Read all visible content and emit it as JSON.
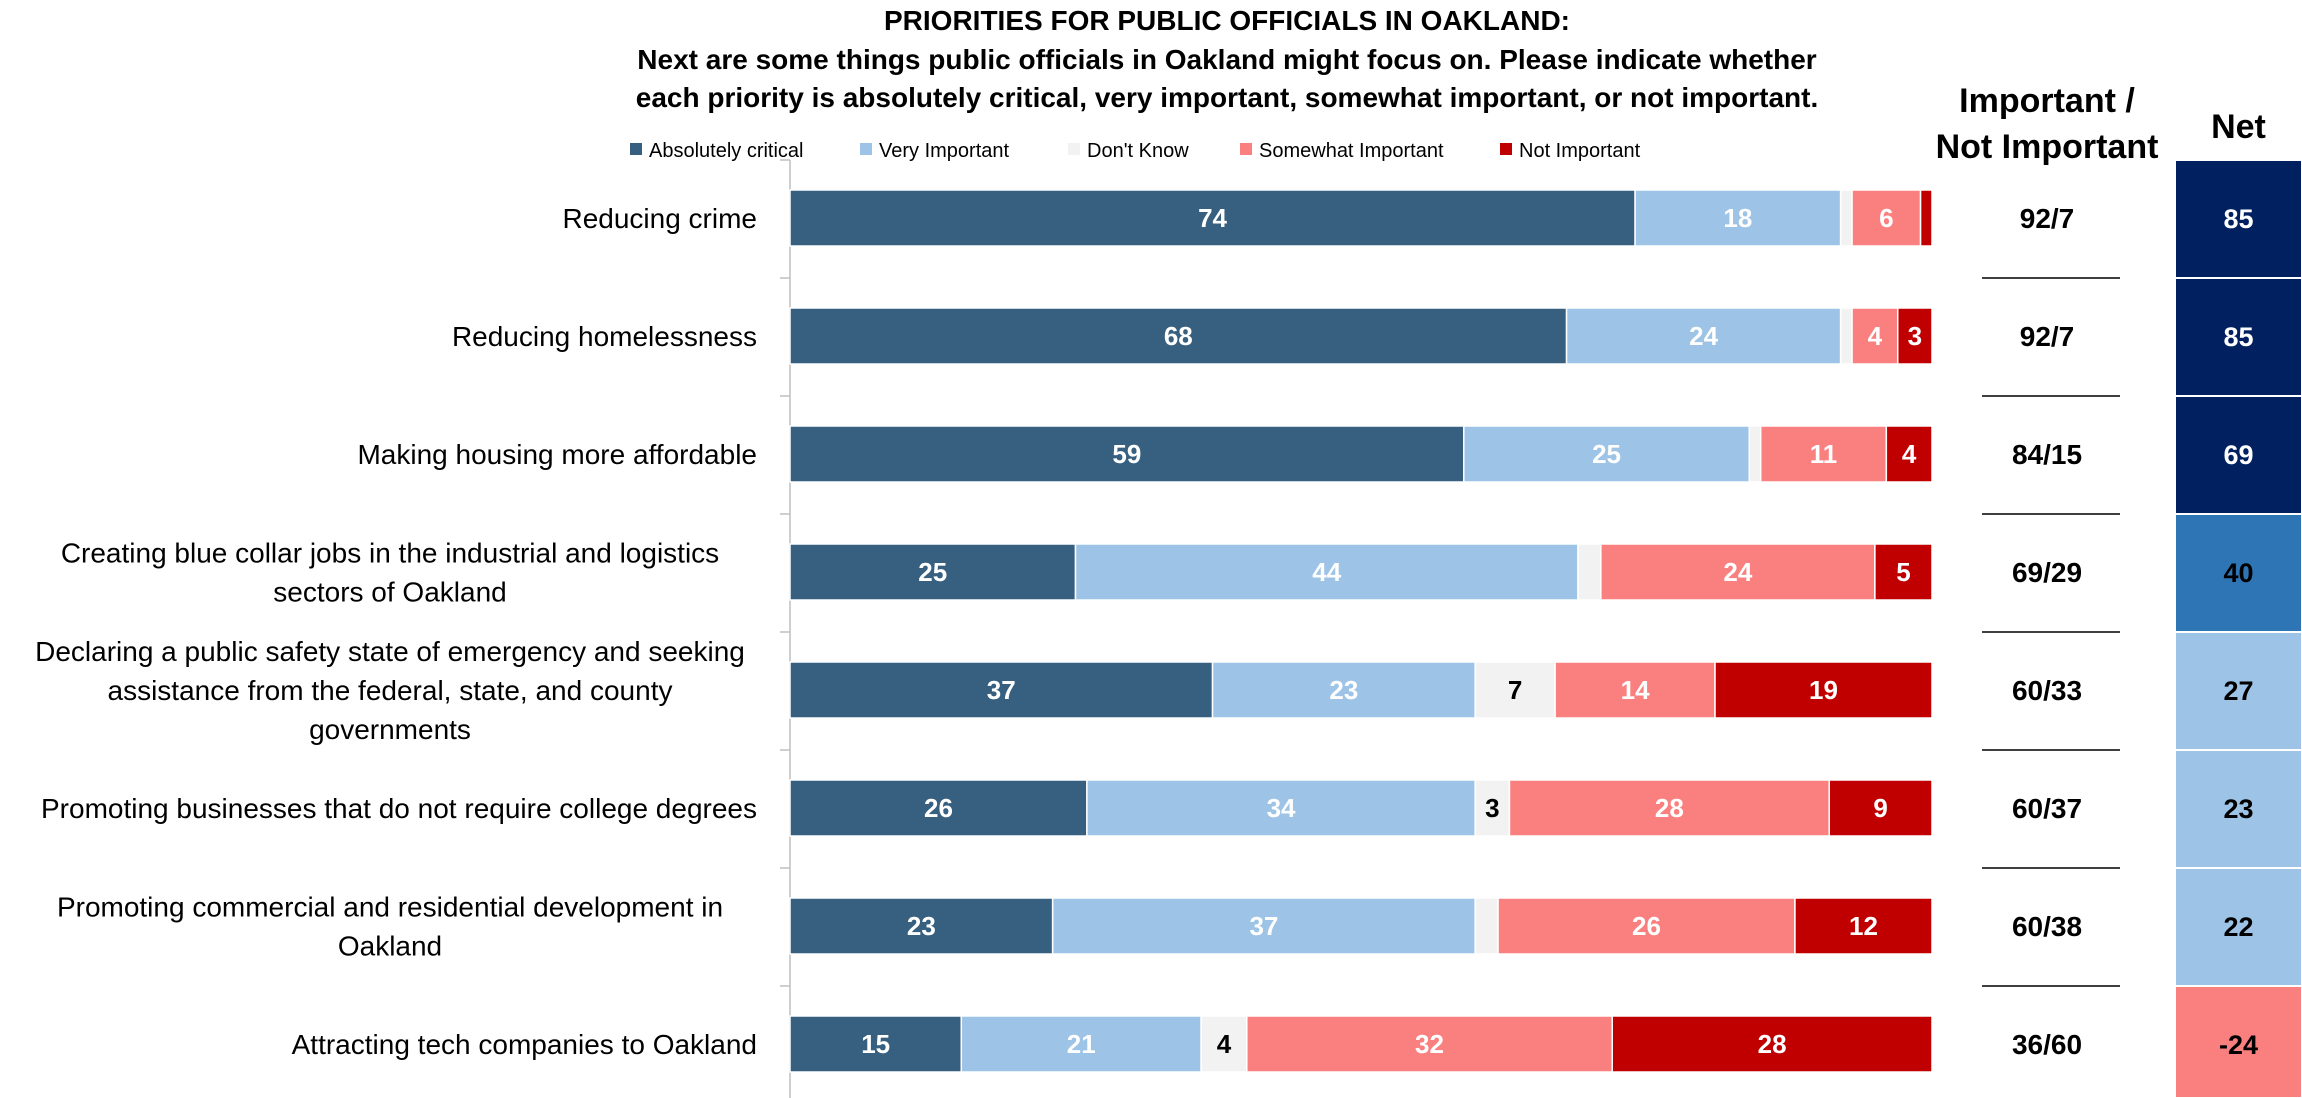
{
  "chart_data": {
    "type": "bar",
    "orientation": "horizontal",
    "stacked": true,
    "title": "PRIORITIES FOR PUBLIC OFFICIALS IN OAKLAND:",
    "subtitle": [
      "Next are some things public officials in Oakland might focus on. Please indicate whether",
      "each priority is absolutely critical, very important, somewhat important, or not important."
    ],
    "legend_position": "top",
    "categories": [
      [
        "Reducing crime"
      ],
      [
        "Reducing homelessness"
      ],
      [
        "Making housing more affordable"
      ],
      [
        "Creating blue collar jobs in the industrial and logistics",
        "sectors of Oakland"
      ],
      [
        "Declaring a public safety state of emergency and seeking",
        "assistance from the federal, state, and county",
        "governments"
      ],
      [
        "Promoting businesses that do not require college degrees"
      ],
      [
        "Promoting commercial and residential development in",
        "Oakland"
      ],
      [
        "Attracting tech companies to Oakland"
      ]
    ],
    "series": [
      {
        "name": "Absolutely critical",
        "color": "#365f80",
        "label_color": "#ffffff",
        "values": [
          74,
          68,
          59,
          25,
          37,
          26,
          23,
          15
        ]
      },
      {
        "name": "Very Important",
        "color": "#9dc3e6",
        "label_color": "#ffffff",
        "values": [
          18,
          24,
          25,
          44,
          23,
          34,
          37,
          21
        ]
      },
      {
        "name": "Don't Know",
        "color": "#f2f2f2",
        "label_color": "#000000",
        "values": [
          1,
          1,
          1,
          2,
          7,
          3,
          2,
          4
        ],
        "labels": [
          "",
          "",
          "",
          "",
          "7",
          "3",
          "",
          "4"
        ]
      },
      {
        "name": "Somewhat Important",
        "color": "#fa8080",
        "label_color": "#ffffff",
        "values": [
          6,
          4,
          11,
          24,
          14,
          28,
          26,
          32
        ]
      },
      {
        "name": "Not Important",
        "color": "#c00000",
        "label_color": "#ffffff",
        "values": [
          1,
          3,
          4,
          5,
          19,
          9,
          12,
          28
        ],
        "labels": [
          "",
          "3",
          "4",
          "5",
          "19",
          "9",
          "12",
          "28"
        ]
      }
    ],
    "xlim": [
      0,
      100
    ],
    "important_header": [
      "Important /",
      "Not Important"
    ],
    "important_not_important": [
      "92/7",
      "92/7",
      "84/15",
      "69/29",
      "60/33",
      "60/37",
      "60/38",
      "36/60"
    ],
    "net_header": "Net",
    "net": [
      85,
      85,
      69,
      40,
      27,
      23,
      22,
      -24
    ],
    "net_colors": [
      "#002060",
      "#002060",
      "#002060",
      "#2e75b6",
      "#9dc3e6",
      "#9dc3e6",
      "#9dc3e6",
      "#fa8080"
    ],
    "net_text_colors": [
      "#ffffff",
      "#ffffff",
      "#ffffff",
      "#000000",
      "#000000",
      "#000000",
      "#000000",
      "#000000"
    ]
  }
}
